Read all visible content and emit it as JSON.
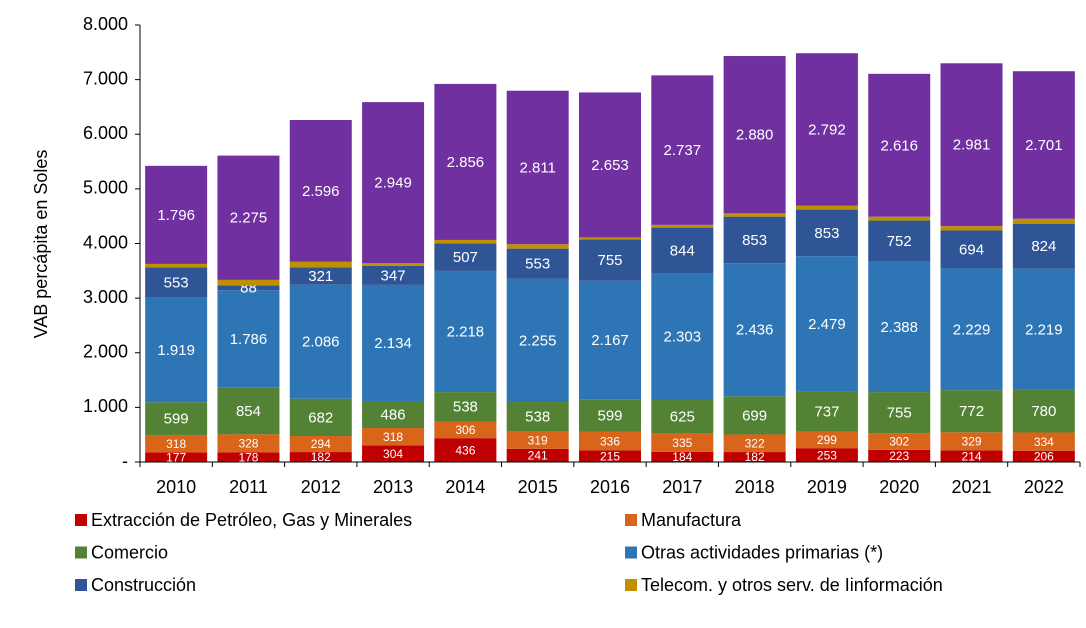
{
  "chart_data": {
    "type": "stacked_bar",
    "ylabel": "VAB percápita en Soles",
    "categories": [
      "2010",
      "2011",
      "2012",
      "2013",
      "2014",
      "2015",
      "2016",
      "2017",
      "2018",
      "2019",
      "2020",
      "2021",
      "2022"
    ],
    "ylim": [
      0,
      8000
    ],
    "yticks": [
      {
        "value": 0,
        "label": "-"
      },
      {
        "value": 1000,
        "label": "1.000"
      },
      {
        "value": 2000,
        "label": "2.000"
      },
      {
        "value": 3000,
        "label": "3.000"
      },
      {
        "value": 4000,
        "label": "4.000"
      },
      {
        "value": 5000,
        "label": "5.000"
      },
      {
        "value": 6000,
        "label": "6.000"
      },
      {
        "value": 7000,
        "label": "7.000"
      },
      {
        "value": 8000,
        "label": "8.000"
      }
    ],
    "grid": false,
    "series": [
      {
        "name": "Extracción de Petróleo, Gas y Minerales",
        "color": "#c00000",
        "values": [
          177,
          178,
          182,
          304,
          436,
          241,
          215,
          184,
          182,
          253,
          223,
          214,
          206
        ],
        "value_labels": [
          "177",
          "178",
          "182",
          "304",
          "436",
          "241",
          "215",
          "184",
          "182",
          "253",
          "223",
          "214",
          "206"
        ]
      },
      {
        "name": "Manufactura",
        "color": "#d9651b",
        "values": [
          318,
          328,
          294,
          318,
          306,
          319,
          336,
          335,
          322,
          299,
          302,
          329,
          334
        ],
        "value_labels": [
          "318",
          "328",
          "294",
          "318",
          "306",
          "319",
          "336",
          "335",
          "322",
          "299",
          "302",
          "329",
          "334"
        ]
      },
      {
        "name": "Comercio",
        "color": "#548235",
        "values": [
          599,
          854,
          682,
          486,
          538,
          538,
          599,
          625,
          699,
          737,
          755,
          772,
          780
        ],
        "value_labels": [
          "599",
          "854",
          "682",
          "486",
          "538",
          "538",
          "599",
          "625",
          "699",
          "737",
          "755",
          "772",
          "780"
        ]
      },
      {
        "name": "Otras actividades primarias (*)",
        "color": "#2e75b6",
        "values": [
          1919,
          1786,
          2086,
          2134,
          2218,
          2255,
          2167,
          2303,
          2436,
          2479,
          2388,
          2229,
          2219
        ],
        "value_labels": [
          "1.919",
          "1.786",
          "2.086",
          "2.134",
          "2.218",
          "2.255",
          "2.167",
          "2.303",
          "2.436",
          "2.479",
          "2.388",
          "2.229",
          "2.219"
        ]
      },
      {
        "name": "Construcción",
        "color": "#2f5597",
        "values": [
          553,
          88,
          321,
          347,
          507,
          553,
          755,
          844,
          853,
          853,
          752,
          694,
          824
        ],
        "value_labels": [
          "553",
          "88",
          "321",
          "347",
          "507",
          "553",
          "755",
          "844",
          "853",
          "853",
          "752",
          "694",
          "824"
        ]
      },
      {
        "name": "Telecom. y otros serv. de Iinformación",
        "color": "#bf9000",
        "values": [
          60,
          100,
          100,
          50,
          60,
          80,
          40,
          50,
          60,
          70,
          70,
          80,
          90
        ]
      },
      {
        "color": "#7030a0",
        "values": [
          1796,
          2275,
          2596,
          2949,
          2856,
          2811,
          2653,
          2737,
          2880,
          2792,
          2616,
          2981,
          2701
        ],
        "value_labels": [
          "1.796",
          "2.275",
          "2.596",
          "2.949",
          "2.856",
          "2.811",
          "2.653",
          "2.737",
          "2.880",
          "2.792",
          "2.616",
          "2.981",
          "2.701"
        ]
      }
    ]
  }
}
